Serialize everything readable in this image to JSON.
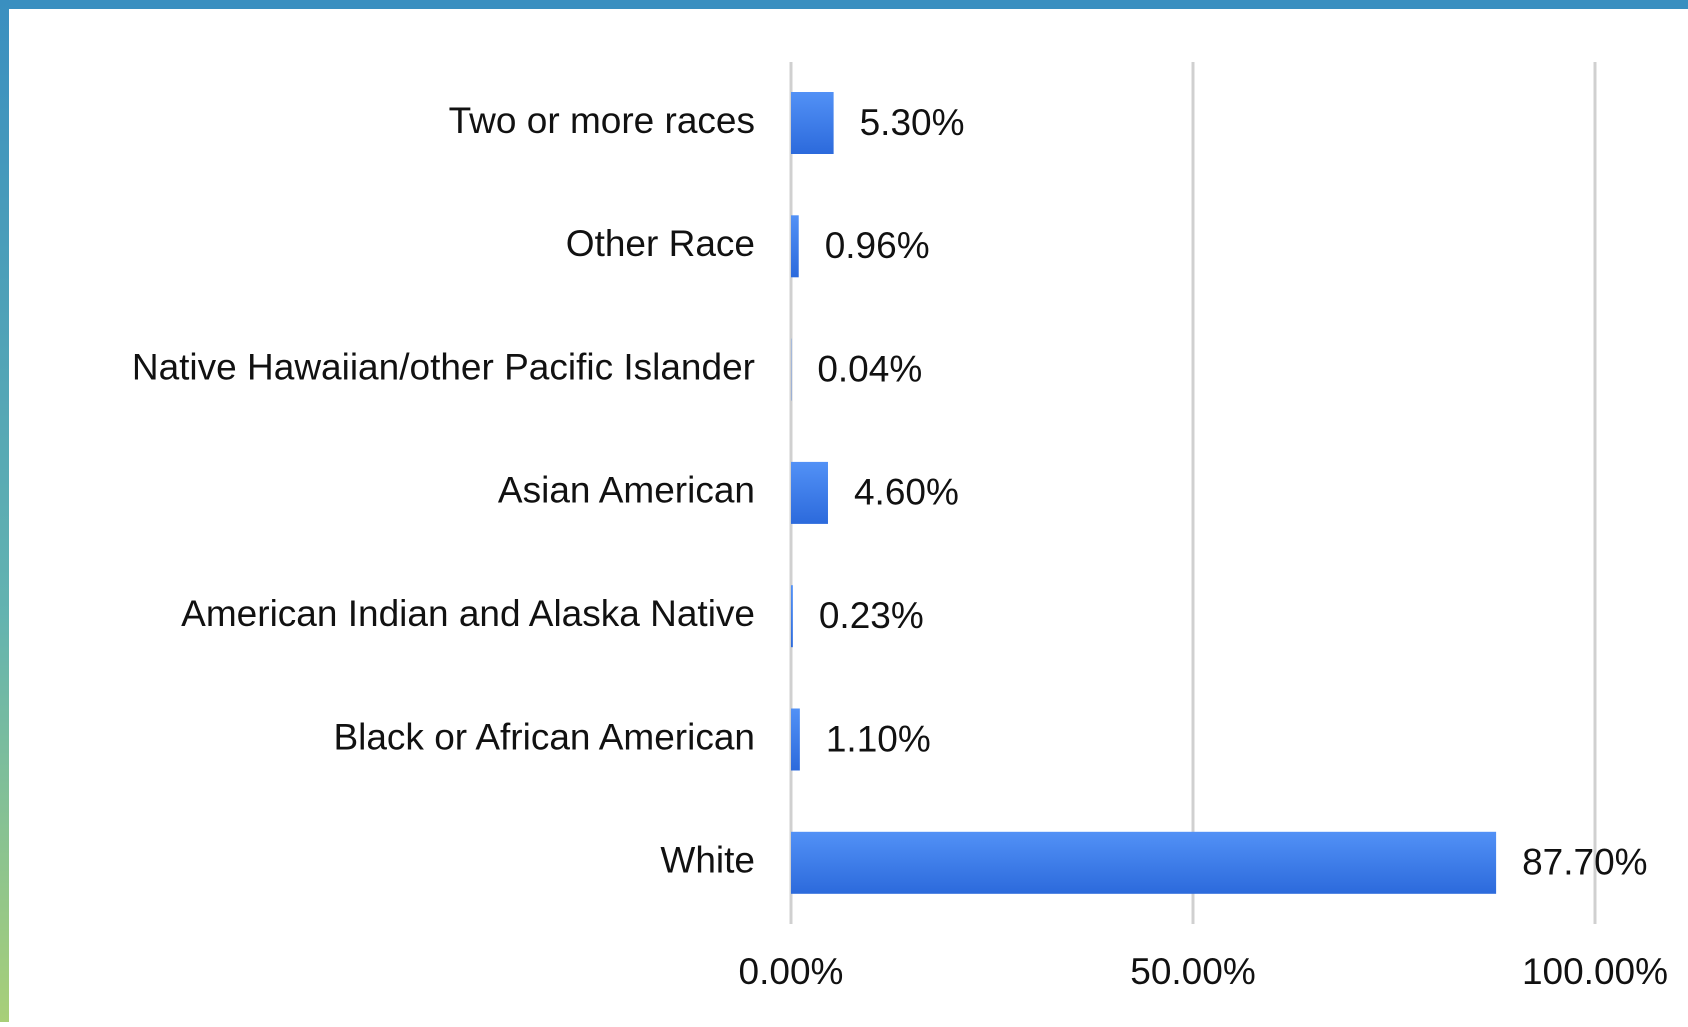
{
  "chart_data": {
    "type": "bar",
    "orientation": "horizontal",
    "categories": [
      "Two or more races",
      "Other Race",
      "Native Hawaiian/other Pacific Islander",
      "Asian American",
      "American Indian and Alaska Native",
      "Black or African American",
      "White"
    ],
    "values": [
      5.3,
      0.96,
      0.04,
      4.6,
      0.23,
      1.1,
      87.7
    ],
    "value_labels": [
      "5.30%",
      "0.96%",
      "0.04%",
      "4.60%",
      "0.23%",
      "1.10%",
      "87.70%"
    ],
    "color": "#3b7ded",
    "xlim": [
      0,
      100
    ],
    "xticks": [
      {
        "value": 0,
        "label": "0.00%"
      },
      {
        "value": 50,
        "label": "50.00%"
      },
      {
        "value": 100,
        "label": "100.00%"
      }
    ],
    "grid": true
  }
}
